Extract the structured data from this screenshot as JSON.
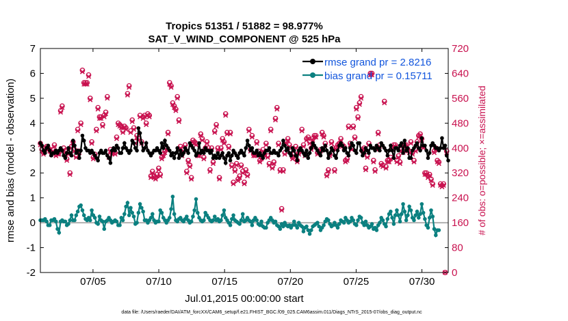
{
  "chart_data": {
    "type": "line",
    "title_line1": "Tropics 51351 / 51882 = 98.977%",
    "title_line2": "SAT_V_WIND_COMPONENT @ 525 hPa",
    "ylabel": "rmse and bias (model - observation)",
    "ylabel_right": "# of obs: o=possible; ×=assimilated",
    "xlabel": "Jul.01,2015 00:00:00 start",
    "footnote": "data file: /Users/raeder/DAI/ATM_forcXX/CAM6_setup/f.e21.FHIST_BGC.f09_025.CAM6assim.011/Diags_NTrS_2015-07/obs_diag_output.nc",
    "ylim": [
      -2,
      7
    ],
    "yticks": [
      "-2",
      "-1",
      "0",
      "1",
      "2",
      "3",
      "4",
      "5",
      "6",
      "7"
    ],
    "ylim_right": [
      0,
      720
    ],
    "yticks_right": [
      "0",
      "80",
      "160",
      "240",
      "320",
      "400",
      "480",
      "560",
      "640",
      "720"
    ],
    "xlim": [
      1,
      32
    ],
    "xtick_values": [
      5,
      10,
      15,
      20,
      25,
      30
    ],
    "xtick_labels": [
      "07/05",
      "07/10",
      "07/15",
      "07/20",
      "07/25",
      "07/30"
    ],
    "legend": [
      "rmse grand pr = 2.8216",
      "bias grand pr = 0.15711"
    ],
    "colors": {
      "rmse": "#000000",
      "bias": "#0b8080",
      "obs": "#c8104e",
      "zero_line": "#b0b0b0",
      "legend_text": "#1155dd"
    },
    "rmse": [
      3.2,
      3.1,
      2.9,
      2.8,
      3.0,
      3.1,
      2.9,
      2.7,
      2.8,
      2.8,
      2.9,
      2.8,
      2.9,
      3.0,
      2.9,
      2.7,
      2.6,
      2.8,
      3.0,
      2.8,
      2.7,
      3.3,
      3.1,
      2.8,
      2.9,
      2.6,
      2.9,
      3.5,
      3.3,
      3.0,
      2.9,
      2.9,
      2.8,
      2.9,
      2.8,
      2.7,
      2.6,
      2.5,
      2.8,
      2.9,
      2.8,
      2.8,
      2.9,
      2.7,
      2.6,
      2.4,
      2.9,
      3.0,
      2.9,
      3.1,
      3.0,
      2.8,
      2.8,
      3.0,
      3.2,
      3.0,
      2.9,
      2.8,
      2.9,
      3.3,
      3.2,
      3.0,
      2.9,
      3.8,
      3.6,
      3.2,
      2.9,
      3.0,
      3.2,
      2.9,
      2.8,
      2.7,
      2.8,
      2.9,
      2.9,
      3.0,
      2.9,
      2.8,
      3.2,
      3.0,
      3.3,
      3.1,
      3.0,
      2.9,
      2.7,
      2.8,
      2.6,
      2.8,
      3.0,
      2.6,
      2.9,
      2.7,
      2.8,
      3.0,
      2.9,
      2.8,
      3.2,
      3.1,
      3.0,
      2.9,
      2.7,
      2.8,
      3.2,
      2.8,
      2.9,
      2.8,
      3.0,
      2.9,
      2.9,
      2.8,
      2.9,
      2.6,
      2.7,
      2.6,
      2.8,
      2.6,
      2.7,
      2.8,
      2.6,
      2.4,
      2.7,
      2.8,
      2.5,
      2.7,
      2.9,
      2.8,
      2.7,
      2.6,
      2.8,
      2.9,
      2.8,
      2.7,
      3.0,
      3.3,
      3.1,
      2.9,
      3.0,
      2.8,
      2.8,
      2.9,
      2.7,
      2.8,
      2.7,
      2.6,
      2.8,
      2.9,
      2.9,
      3.0,
      2.8,
      2.8,
      2.9,
      2.8,
      2.8,
      2.7,
      2.9,
      3.0,
      3.3,
      3.1,
      2.9,
      3.0,
      2.8,
      2.7,
      3.0,
      2.9,
      2.7,
      2.5,
      2.9,
      3.0,
      2.9,
      2.8,
      2.7,
      2.9,
      2.6,
      2.8,
      3.0,
      3.2,
      3.1,
      3.0,
      2.9,
      2.8,
      2.7,
      3.0,
      2.9,
      3.1,
      2.9,
      2.6,
      2.8,
      3.0,
      2.9,
      2.7,
      2.6,
      2.9,
      3.1,
      3.2,
      3.1,
      2.9,
      3.0,
      2.8,
      2.7,
      3.0,
      3.2,
      3.1,
      2.9,
      2.8,
      3.2,
      3.2,
      2.9,
      2.7,
      2.8,
      3.0,
      2.9,
      2.8,
      3.1,
      3.0,
      3.0,
      2.9,
      3.1,
      3.0,
      2.9,
      3.2,
      3.1,
      3.0,
      2.9,
      2.7,
      2.9,
      3.1,
      2.9,
      2.6,
      3.0,
      3.0,
      2.9,
      3.1,
      3.2,
      2.8,
      3.3,
      2.9,
      3.0,
      2.6,
      2.6,
      2.9,
      3.0,
      3.1,
      3.2,
      3.0,
      2.9,
      3.4,
      3.1,
      3.1,
      2.9,
      2.6,
      2.8,
      3.1,
      3.2,
      3.1,
      3.0,
      3.0,
      2.9,
      3.0,
      3.4,
      3.0,
      3.1,
      2.7,
      2.5
    ],
    "bias": [
      0.1,
      0.1,
      0.1,
      0.15,
      0.05,
      -0.1,
      -0.1,
      0.1,
      0.1,
      0.15,
      0.05,
      -0.25,
      -0.4,
      0.05,
      0.1,
      0.05,
      0.05,
      -0.1,
      -0.05,
      0.1,
      0.3,
      0.1,
      0.1,
      0.3,
      0.45,
      0.65,
      0.7,
      0.5,
      0.3,
      0.15,
      0.1,
      0.2,
      0.1,
      0.5,
      0.3,
      0.2,
      0.0,
      -0.05,
      0.25,
      0.1,
      0.05,
      -0.25,
      0.05,
      0.1,
      0.2,
      0.1,
      0.0,
      0.05,
      0.1,
      0.05,
      -0.1,
      -0.1,
      0.2,
      0.1,
      0.35,
      0.65,
      0.8,
      0.3,
      0.6,
      0.4,
      0.25,
      -0.05,
      0.0,
      0.4,
      0.75,
      0.6,
      0.45,
      0.1,
      0.1,
      0.0,
      0.1,
      0.2,
      0.35,
      0.1,
      0.0,
      0.05,
      0.05,
      0.5,
      0.4,
      0.2,
      0.1,
      0.0,
      0.1,
      0.2,
      0.55,
      1.05,
      0.35,
      0.1,
      0.05,
      0.15,
      0.2,
      0.1,
      0.05,
      0.15,
      0.25,
      0.1,
      0.0,
      0.05,
      0.25,
      0.5,
      0.95,
      0.4,
      0.2,
      0.1,
      0.05,
      0.1,
      0.4,
      0.3,
      0.2,
      0.1,
      0.05,
      0.1,
      0.25,
      0.1,
      0.15,
      0.05,
      0.1,
      0.3,
      0.5,
      0.2,
      0.1,
      0.0,
      -0.1,
      0.15,
      0.3,
      0.1,
      0.05,
      0.0,
      -0.05,
      0.1,
      0.35,
      0.05,
      0.1,
      0.2,
      0.1,
      0.05,
      -0.1,
      0.1,
      0.2,
      0.1,
      -0.05,
      -0.1,
      0.05,
      -0.15,
      -0.2,
      -0.2,
      0.0,
      0.1,
      0.2,
      0.1,
      0.0,
      0.05,
      -0.1,
      -0.15,
      -0.25,
      -0.05,
      -0.15,
      0.0,
      -0.1,
      -0.15,
      -0.1,
      -0.2,
      -0.1,
      0.05,
      -0.1,
      -0.2,
      0.0,
      -0.1,
      -0.15,
      -0.35,
      -0.2,
      -0.15,
      -0.3,
      -0.45,
      -0.3,
      -0.15,
      -0.1,
      -0.05,
      0.0,
      -0.15,
      -0.3,
      -0.2,
      -0.1,
      0.05,
      0.15,
      0.1,
      -0.05,
      -0.15,
      -0.1,
      0.0,
      -0.1,
      -0.2,
      -0.05,
      0.1,
      0.05,
      0.0,
      0.2,
      0.1,
      0.0,
      0.05,
      0.2,
      0.1,
      -0.05,
      -0.1,
      0.1,
      0.25,
      0.2,
      0.0,
      -0.1,
      0.05,
      -0.1,
      -0.2,
      -0.15,
      -0.05,
      -0.25,
      -0.2,
      -0.3,
      -0.1,
      0.0,
      0.2,
      0.1,
      -0.05,
      -0.15,
      0.15,
      0.35,
      0.45,
      0.2,
      -0.05,
      0.3,
      0.5,
      0.3,
      0.05,
      0.35,
      0.75,
      0.45,
      0.1,
      0.3,
      0.65,
      0.5,
      0.2,
      0.1,
      0.3,
      0.45,
      0.2,
      0.35,
      0.75,
      0.4,
      0.15,
      -0.1,
      -0.2,
      0.2,
      0.5,
      0.25,
      -0.25,
      -0.5,
      -0.3,
      -0.3
    ],
    "obs_possible": [
      415,
      395,
      385,
      400,
      405,
      400,
      395,
      385,
      395,
      410,
      380,
      385,
      385,
      520,
      535,
      400,
      390,
      365,
      385,
      320,
      405,
      420,
      395,
      375,
      460,
      390,
      480,
      650,
      610,
      610,
      610,
      635,
      560,
      420,
      370,
      380,
      460,
      530,
      500,
      500,
      475,
      505,
      515,
      565,
      375,
      395,
      385,
      390,
      385,
      435,
      480,
      475,
      470,
      455,
      470,
      465,
      575,
      600,
      455,
      490,
      465,
      420,
      440,
      430,
      505,
      420,
      500,
      505,
      480,
      510,
      505,
      310,
      325,
      310,
      305,
      315,
      335,
      315,
      370,
      380,
      390,
      400,
      450,
      610,
      600,
      545,
      535,
      525,
      565,
      490,
      405,
      380,
      395,
      410,
      325,
      360,
      345,
      305,
      425,
      420,
      415,
      380,
      380,
      445,
      430,
      370,
      400,
      420,
      400,
      330,
      400,
      355,
      455,
      475,
      400,
      305,
      400,
      430,
      420,
      510,
      450,
      405,
      450,
      345,
      290,
      330,
      350,
      300,
      310,
      345,
      325,
      290,
      330,
      315,
      460,
      395,
      440,
      380,
      380,
      420,
      390,
      360,
      370,
      395,
      380,
      415,
      375,
      350,
      460,
      340,
      355,
      495,
      530,
      415,
      330,
      205,
      330,
      385,
      420,
      430,
      410,
      390,
      370,
      380,
      405,
      360,
      385,
      395,
      460,
      410,
      380,
      430,
      435,
      420,
      400,
      430,
      440,
      440,
      385,
      390,
      395,
      450,
      440,
      415,
      315,
      330,
      380,
      420,
      400,
      330,
      400,
      410,
      415,
      430,
      410,
      405,
      360,
      365,
      470,
      415,
      400,
      470,
      435,
      530,
      500,
      545,
      565,
      395,
      400,
      335,
      375,
      415,
      640,
      640,
      360,
      330,
      400,
      450,
      410,
      350,
      345,
      550,
      340,
      360,
      360,
      370,
      400,
      410,
      410,
      360,
      375,
      355,
      395,
      390,
      410,
      410,
      395,
      390,
      420,
      385,
      360,
      395,
      420,
      440,
      445,
      430,
      405,
      320,
      320,
      310,
      315,
      300,
      285,
      390,
      400,
      360,
      355,
      285,
      280,
      285,
      0,
      390
    ],
    "obs_assimilated": [
      410,
      390,
      380,
      395,
      400,
      395,
      390,
      380,
      390,
      405,
      375,
      380,
      380,
      515,
      530,
      395,
      385,
      360,
      380,
      315,
      400,
      415,
      390,
      370,
      455,
      385,
      475,
      645,
      605,
      605,
      605,
      630,
      555,
      415,
      365,
      375,
      455,
      525,
      495,
      495,
      470,
      500,
      510,
      560,
      370,
      390,
      380,
      385,
      380,
      430,
      475,
      470,
      465,
      450,
      465,
      460,
      570,
      595,
      450,
      485,
      460,
      415,
      435,
      425,
      500,
      415,
      495,
      500,
      475,
      505,
      500,
      305,
      320,
      305,
      300,
      310,
      330,
      310,
      365,
      375,
      385,
      395,
      445,
      605,
      595,
      540,
      530,
      520,
      560,
      485,
      400,
      375,
      390,
      405,
      320,
      355,
      340,
      300,
      420,
      415,
      410,
      375,
      375,
      440,
      425,
      365,
      395,
      415,
      395,
      325,
      395,
      350,
      450,
      470,
      395,
      300,
      395,
      425,
      415,
      505,
      445,
      400,
      445,
      340,
      285,
      325,
      345,
      295,
      305,
      340,
      320,
      285,
      325,
      310,
      455,
      390,
      435,
      375,
      375,
      415,
      385,
      355,
      365,
      390,
      375,
      410,
      370,
      345,
      455,
      335,
      350,
      490,
      525,
      410,
      325,
      200,
      325,
      380,
      415,
      425,
      405,
      385,
      365,
      375,
      400,
      355,
      380,
      390,
      455,
      405,
      375,
      425,
      430,
      415,
      395,
      425,
      435,
      435,
      380,
      385,
      390,
      445,
      435,
      410,
      310,
      325,
      375,
      415,
      395,
      325,
      395,
      405,
      410,
      425,
      405,
      400,
      355,
      360,
      465,
      410,
      395,
      465,
      430,
      525,
      495,
      540,
      560,
      390,
      395,
      330,
      370,
      410,
      635,
      635,
      355,
      325,
      395,
      445,
      405,
      345,
      340,
      545,
      335,
      355,
      355,
      365,
      395,
      405,
      405,
      355,
      370,
      350,
      390,
      385,
      405,
      405,
      390,
      385,
      415,
      380,
      355,
      390,
      415,
      435,
      440,
      425,
      400,
      315,
      315,
      305,
      310,
      295,
      280,
      385,
      395,
      355,
      350,
      280,
      275,
      280,
      0,
      385
    ]
  }
}
